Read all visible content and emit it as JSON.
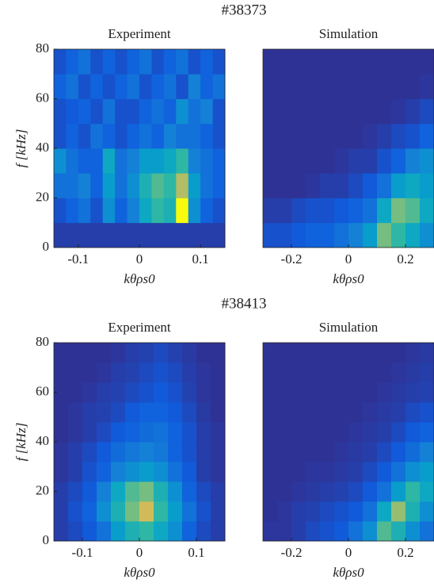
{
  "figure_titles": [
    "#38373",
    "#38413"
  ],
  "colormap": [
    "#352a87",
    "#0f5cdd",
    "#1481d6",
    "#06a4ca",
    "#2eb7a4",
    "#87bf77",
    "#d1bb59",
    "#fec832",
    "#f9fb0e"
  ],
  "chart_data": [
    {
      "type": "heatmap",
      "title": "Experiment",
      "xlabel": "kθρs0",
      "ylabel": "f [kHz]",
      "xlim": [
        -0.14,
        0.14
      ],
      "xticks": [
        -0.1,
        0,
        0.1
      ],
      "ylim": [
        0,
        80
      ],
      "yticks": [
        0,
        20,
        40,
        60,
        80
      ],
      "z": [
        [
          0.05,
          0.05,
          0.05,
          0.05,
          0.05,
          0.05,
          0.05,
          0.05,
          0.05,
          0.05,
          0.05,
          0.05,
          0.05,
          0.05
        ],
        [
          0.1,
          0.15,
          0.2,
          0.1,
          0.3,
          0.15,
          0.25,
          0.4,
          0.5,
          0.45,
          1.0,
          0.3,
          0.15,
          0.1
        ],
        [
          0.2,
          0.2,
          0.25,
          0.15,
          0.35,
          0.2,
          0.3,
          0.45,
          0.55,
          0.5,
          0.7,
          0.35,
          0.2,
          0.15
        ],
        [
          0.3,
          0.2,
          0.15,
          0.15,
          0.4,
          0.2,
          0.25,
          0.35,
          0.35,
          0.4,
          0.5,
          0.25,
          0.2,
          0.15
        ],
        [
          0.1,
          0.15,
          0.1,
          0.2,
          0.15,
          0.1,
          0.15,
          0.2,
          0.15,
          0.25,
          0.2,
          0.2,
          0.15,
          0.1
        ],
        [
          0.1,
          0.12,
          0.15,
          0.1,
          0.2,
          0.1,
          0.1,
          0.15,
          0.2,
          0.15,
          0.3,
          0.2,
          0.25,
          0.1
        ],
        [
          0.15,
          0.2,
          0.1,
          0.15,
          0.1,
          0.15,
          0.2,
          0.1,
          0.15,
          0.2,
          0.1,
          0.25,
          0.15,
          0.2
        ],
        [
          0.1,
          0.15,
          0.2,
          0.1,
          0.15,
          0.1,
          0.15,
          0.2,
          0.1,
          0.15,
          0.2,
          0.1,
          0.15,
          0.1
        ]
      ]
    },
    {
      "type": "heatmap",
      "title": "Simulation",
      "xlabel": "kθρs0",
      "xlim": [
        -0.3,
        0.3
      ],
      "xticks": [
        -0.2,
        0,
        0.2
      ],
      "ylim": [
        0,
        80
      ],
      "z": [
        [
          0.1,
          0.1,
          0.12,
          0.15,
          0.15,
          0.2,
          0.25,
          0.35,
          0.6,
          0.5,
          0.4,
          0.3
        ],
        [
          0.05,
          0.05,
          0.08,
          0.1,
          0.1,
          0.12,
          0.15,
          0.2,
          0.4,
          0.6,
          0.55,
          0.4
        ],
        [
          0.02,
          0.02,
          0.02,
          0.03,
          0.05,
          0.05,
          0.08,
          0.12,
          0.2,
          0.35,
          0.4,
          0.35
        ],
        [
          0.02,
          0.02,
          0.02,
          0.02,
          0.02,
          0.03,
          0.05,
          0.05,
          0.1,
          0.15,
          0.25,
          0.3
        ],
        [
          0.02,
          0.02,
          0.02,
          0.02,
          0.02,
          0.02,
          0.02,
          0.03,
          0.05,
          0.08,
          0.1,
          0.15
        ],
        [
          0.02,
          0.02,
          0.02,
          0.02,
          0.02,
          0.02,
          0.02,
          0.02,
          0.02,
          0.03,
          0.05,
          0.08
        ],
        [
          0.02,
          0.02,
          0.02,
          0.02,
          0.02,
          0.02,
          0.02,
          0.02,
          0.02,
          0.02,
          0.02,
          0.03
        ],
        [
          0.02,
          0.02,
          0.02,
          0.02,
          0.02,
          0.02,
          0.02,
          0.02,
          0.02,
          0.02,
          0.02,
          0.02
        ]
      ]
    },
    {
      "type": "heatmap",
      "title": "Experiment",
      "xlabel": "kθρs0",
      "ylabel": "f [kHz]",
      "xlim": [
        -0.15,
        0.15
      ],
      "xticks": [
        -0.1,
        0,
        0.1
      ],
      "ylim": [
        0,
        80
      ],
      "yticks": [
        0,
        20,
        40,
        60,
        80
      ],
      "z": [
        [
          0.05,
          0.08,
          0.12,
          0.2,
          0.35,
          0.45,
          0.5,
          0.4,
          0.3,
          0.15,
          0.08,
          0.05
        ],
        [
          0.05,
          0.1,
          0.15,
          0.3,
          0.45,
          0.6,
          0.75,
          0.5,
          0.35,
          0.2,
          0.1,
          0.05
        ],
        [
          0.05,
          0.08,
          0.12,
          0.25,
          0.4,
          0.55,
          0.6,
          0.45,
          0.3,
          0.15,
          0.08,
          0.05
        ],
        [
          0.03,
          0.05,
          0.1,
          0.15,
          0.25,
          0.3,
          0.35,
          0.3,
          0.2,
          0.12,
          0.05,
          0.03
        ],
        [
          0.03,
          0.05,
          0.08,
          0.12,
          0.18,
          0.22,
          0.25,
          0.22,
          0.15,
          0.1,
          0.05,
          0.03
        ],
        [
          0.02,
          0.03,
          0.05,
          0.08,
          0.12,
          0.15,
          0.18,
          0.2,
          0.15,
          0.1,
          0.05,
          0.03
        ],
        [
          0.02,
          0.03,
          0.05,
          0.06,
          0.08,
          0.12,
          0.15,
          0.15,
          0.12,
          0.08,
          0.04,
          0.02
        ],
        [
          0.02,
          0.02,
          0.03,
          0.05,
          0.06,
          0.08,
          0.1,
          0.12,
          0.1,
          0.06,
          0.03,
          0.02
        ],
        [
          0.02,
          0.02,
          0.02,
          0.03,
          0.05,
          0.06,
          0.08,
          0.1,
          0.08,
          0.05,
          0.03,
          0.02
        ],
        [
          0.02,
          0.02,
          0.02,
          0.02,
          0.03,
          0.05,
          0.06,
          0.08,
          0.06,
          0.04,
          0.02,
          0.02
        ]
      ]
    },
    {
      "type": "heatmap",
      "title": "Simulation",
      "xlabel": "kθρs0",
      "xlim": [
        -0.3,
        0.3
      ],
      "xticks": [
        -0.2,
        0,
        0.2
      ],
      "ylim": [
        0,
        80
      ],
      "z": [
        [
          0.03,
          0.03,
          0.05,
          0.08,
          0.1,
          0.12,
          0.2,
          0.3,
          0.55,
          0.45,
          0.3,
          0.2
        ],
        [
          0.02,
          0.03,
          0.05,
          0.06,
          0.08,
          0.1,
          0.12,
          0.2,
          0.4,
          0.65,
          0.45,
          0.3
        ],
        [
          0.02,
          0.02,
          0.03,
          0.04,
          0.05,
          0.06,
          0.08,
          0.12,
          0.2,
          0.35,
          0.5,
          0.4
        ],
        [
          0.02,
          0.02,
          0.02,
          0.03,
          0.03,
          0.04,
          0.05,
          0.08,
          0.12,
          0.2,
          0.3,
          0.35
        ],
        [
          0.02,
          0.02,
          0.02,
          0.02,
          0.02,
          0.03,
          0.04,
          0.05,
          0.08,
          0.12,
          0.18,
          0.25
        ],
        [
          0.02,
          0.02,
          0.02,
          0.02,
          0.02,
          0.02,
          0.03,
          0.04,
          0.05,
          0.08,
          0.12,
          0.15
        ],
        [
          0.02,
          0.02,
          0.02,
          0.02,
          0.02,
          0.02,
          0.02,
          0.03,
          0.04,
          0.05,
          0.08,
          0.1
        ],
        [
          0.02,
          0.02,
          0.02,
          0.02,
          0.02,
          0.02,
          0.02,
          0.02,
          0.03,
          0.04,
          0.05,
          0.06
        ],
        [
          0.02,
          0.02,
          0.02,
          0.02,
          0.02,
          0.02,
          0.02,
          0.02,
          0.02,
          0.03,
          0.04,
          0.05
        ],
        [
          0.02,
          0.02,
          0.02,
          0.02,
          0.02,
          0.02,
          0.02,
          0.02,
          0.02,
          0.02,
          0.03,
          0.04
        ]
      ]
    }
  ]
}
